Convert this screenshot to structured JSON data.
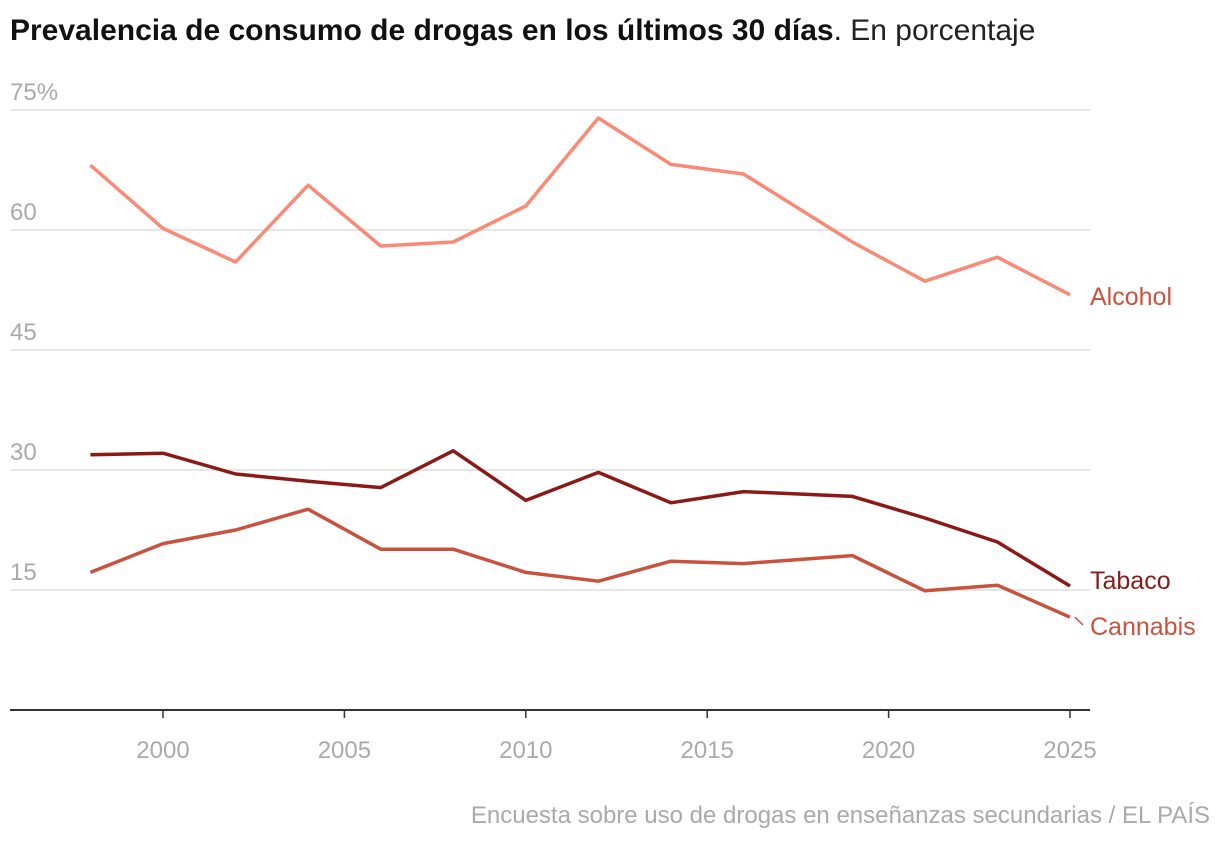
{
  "chart_data": {
    "type": "line",
    "title": "Prevalencia de consumo de drogas en los últimos 30 días",
    "subtitle": "En porcentaje",
    "source": "Encuesta sobre uso de drogas en enseñanzas secundarias / EL PAÍS",
    "xlim": [
      1996,
      2026
    ],
    "ylim": [
      0,
      75
    ],
    "xticks": [
      2000,
      2005,
      2010,
      2015,
      2020,
      2025
    ],
    "yticks": [
      15,
      30,
      45,
      60,
      75
    ],
    "ytick_labels": [
      "15",
      "30",
      "45",
      "60",
      "75%"
    ],
    "grid": "horizontal",
    "x": [
      1998,
      2000,
      2002,
      2004,
      2006,
      2008,
      2010,
      2012,
      2014,
      2016,
      2019,
      2021,
      2023,
      2025
    ],
    "series": [
      {
        "name": "Alcohol",
        "color": "#f98a75",
        "label_color": "#c9523f",
        "values": [
          68.1,
          60.2,
          56.0,
          65.6,
          58.0,
          58.5,
          63.0,
          74.0,
          68.2,
          67.0,
          58.5,
          53.6,
          56.6,
          51.9
        ]
      },
      {
        "name": "Tabaco",
        "color": "#8b1a17",
        "label_color": "#8b1a17",
        "values": [
          31.9,
          32.1,
          29.5,
          28.6,
          27.8,
          32.4,
          26.2,
          29.7,
          25.9,
          27.3,
          26.7,
          24.0,
          21.0,
          15.5
        ]
      },
      {
        "name": "Cannabis",
        "color": "#c9523f",
        "label_color": "#c9523f",
        "values": [
          17.2,
          20.8,
          22.5,
          25.1,
          20.1,
          20.1,
          17.2,
          16.1,
          18.6,
          18.3,
          19.3,
          14.9,
          15.6,
          11.6
        ]
      }
    ]
  }
}
